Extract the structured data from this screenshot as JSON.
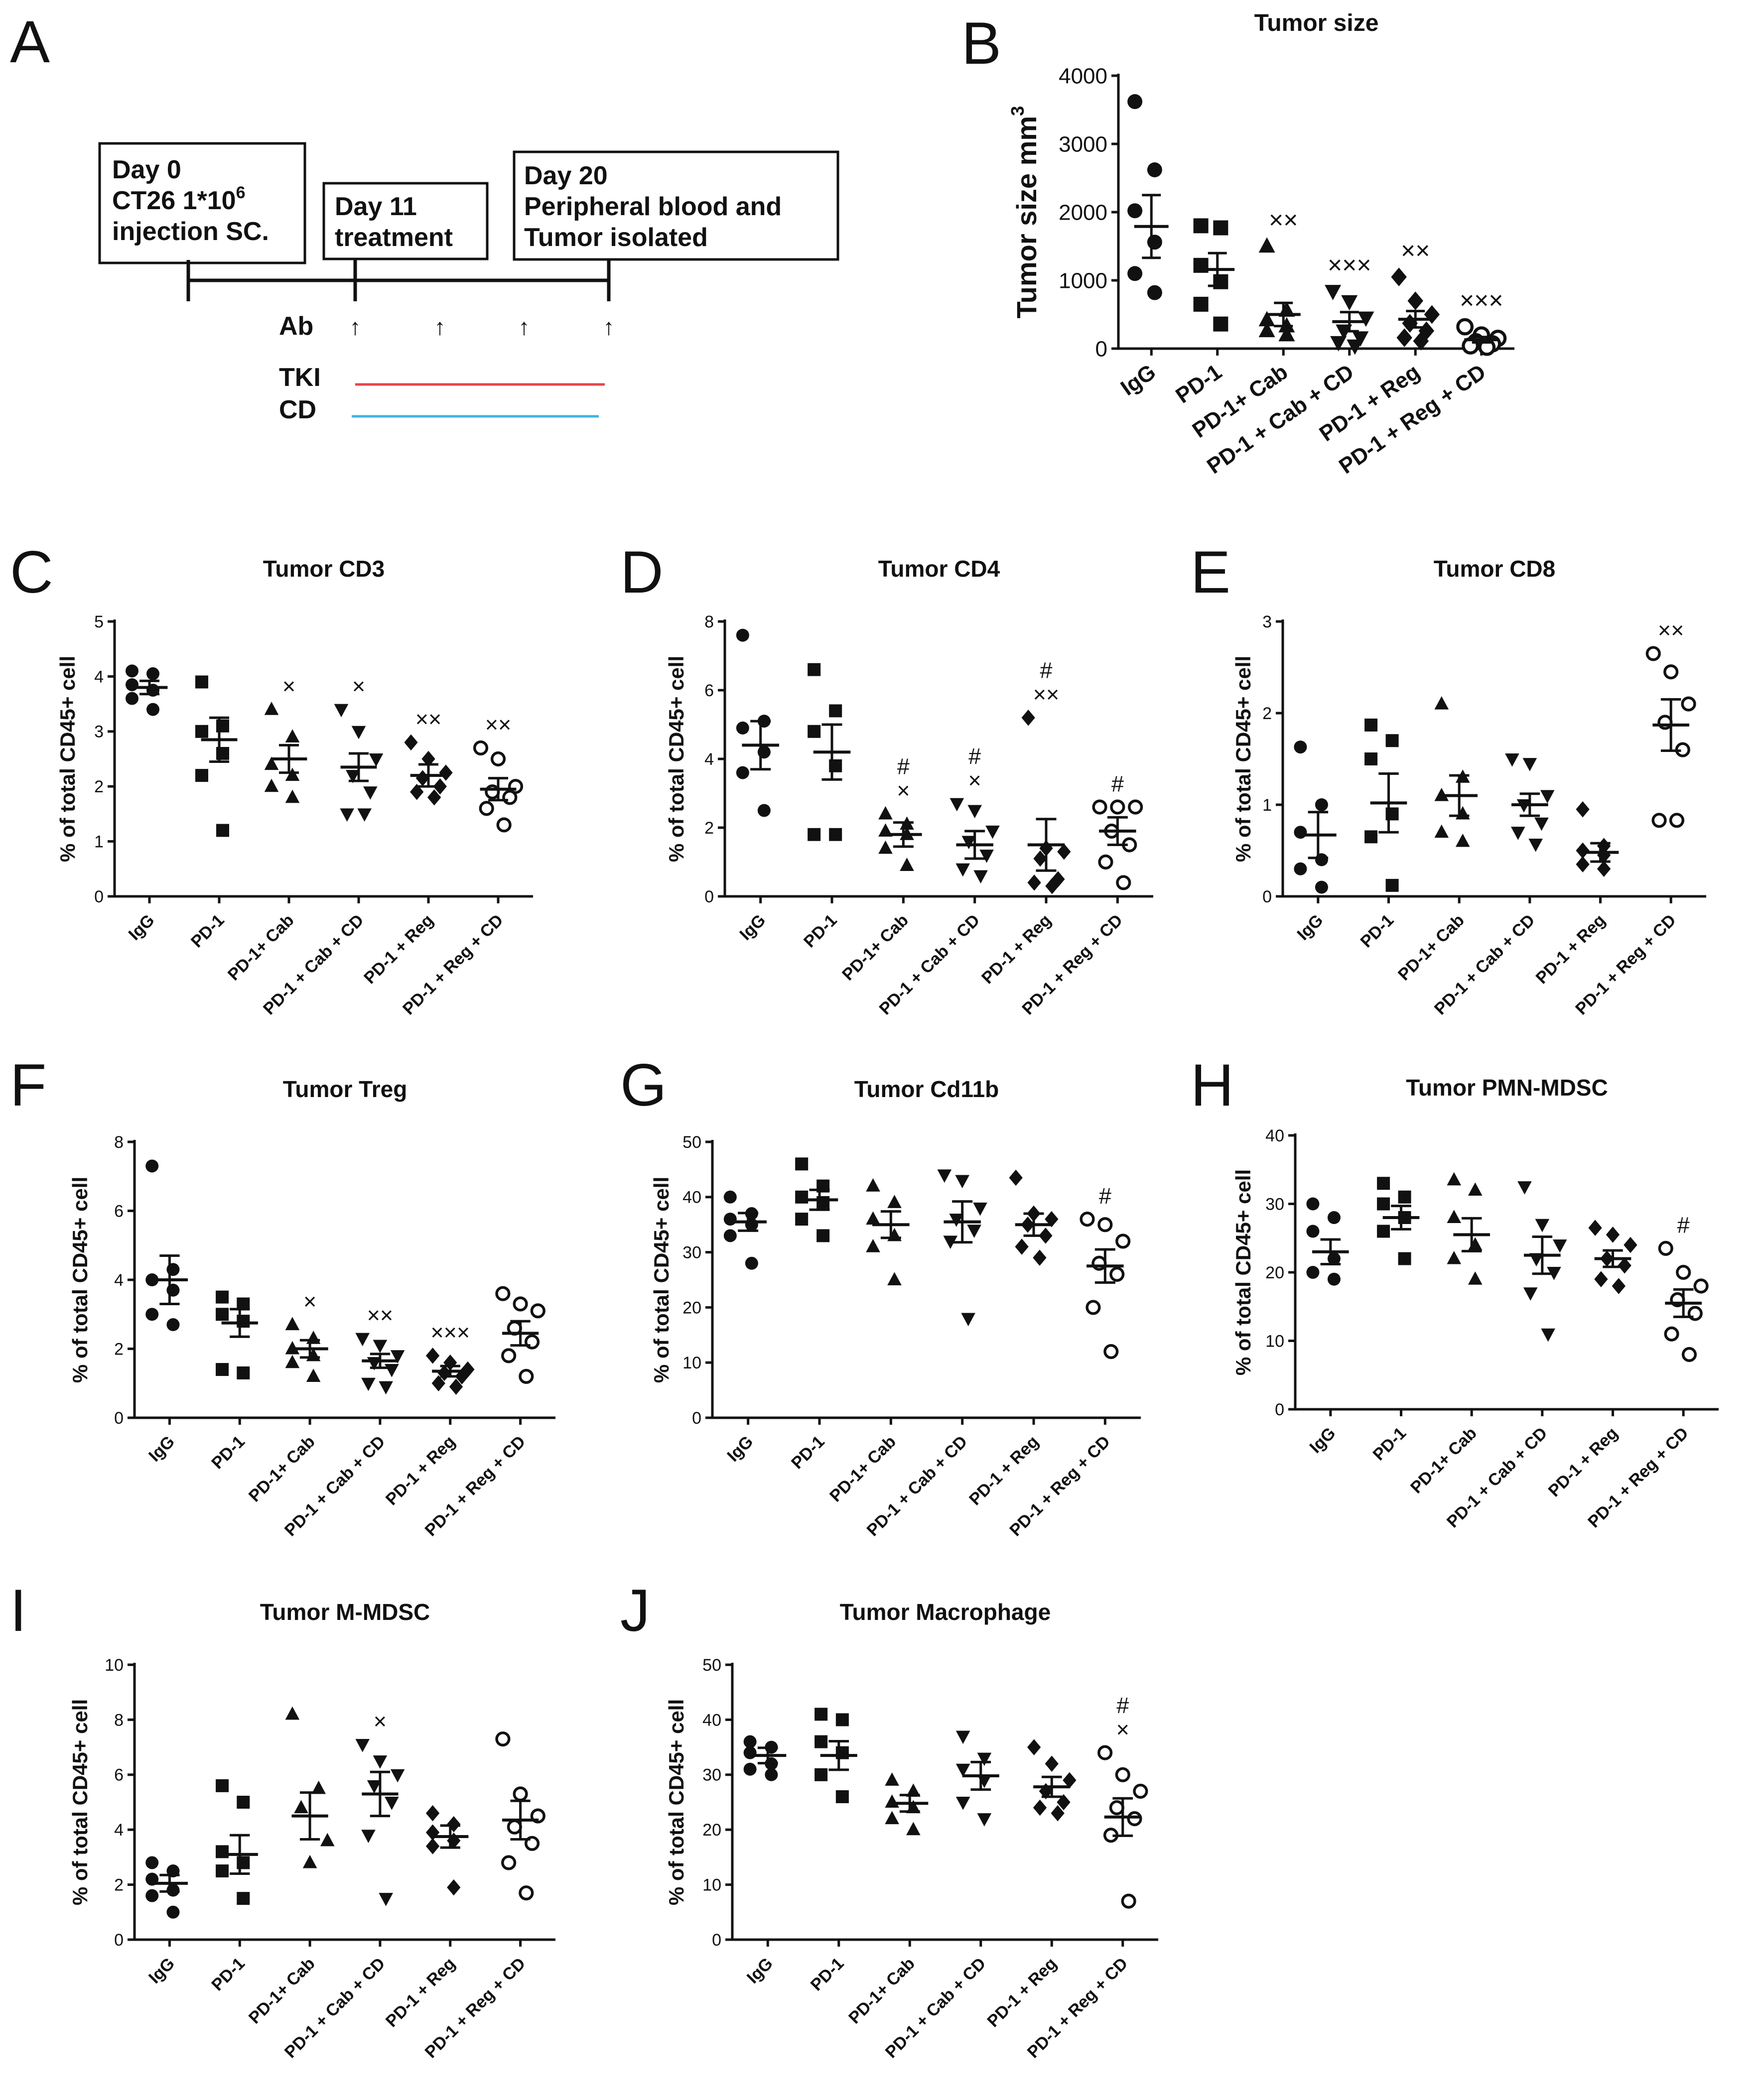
{
  "figure": {
    "panel_a": {
      "letter": "A",
      "box1": [
        "Day 0",
        "CT26 1*10",
        "injection SC."
      ],
      "box1_sup": "6",
      "box2": [
        "Day 11",
        "treatment"
      ],
      "box3": [
        "Day 20",
        "Peripheral blood and",
        "Tumor isolated"
      ],
      "ab_label": "Ab",
      "arrow_glyph": "↑",
      "tki_label": "TKI",
      "cd_label": "CD",
      "tki_color": "#e64646",
      "cd_color": "#3fb4e6"
    }
  },
  "chart_data": [
    {
      "id": "B",
      "type": "scatter",
      "title": "Tumor size",
      "ylabel": "Tumor size mm",
      "ylabel_sup": "3",
      "categories": [
        "IgG",
        "PD-1",
        "PD-1+ Cab",
        "PD-1 + Cab + CD",
        "PD-1 + Reg",
        "PD-1 + Reg + CD"
      ],
      "ylim": [
        0,
        4000
      ],
      "yticks": [
        0,
        1000,
        2000,
        3000,
        4000
      ],
      "points": [
        [
          3620,
          2620,
          2020,
          1560,
          1100,
          820
        ],
        [
          1800,
          1770,
          1220,
          980,
          650,
          360
        ],
        [
          1500,
          560,
          420,
          330,
          260,
          200
        ],
        [
          840,
          690,
          450,
          260,
          160,
          90,
          40
        ],
        [
          1050,
          700,
          500,
          370,
          260,
          160,
          110
        ],
        [
          320,
          200,
          150,
          100,
          70,
          40,
          20
        ]
      ],
      "mean": [
        1790,
        1160,
        500,
        395,
        430,
        130
      ],
      "sem": [
        460,
        240,
        170,
        140,
        120,
        40
      ],
      "annotations": [
        [],
        [],
        [
          "××"
        ],
        [
          "×××"
        ],
        [
          "××"
        ],
        [
          "×××"
        ]
      ]
    },
    {
      "id": "C",
      "type": "scatter",
      "title": "Tumor CD3",
      "ylabel": "% of total CD45+ cell",
      "categories": [
        "IgG",
        "PD-1",
        "PD-1+ Cab",
        "PD-1 + Cab + CD",
        "PD-1 + Reg",
        "PD-1 + Reg + CD"
      ],
      "ylim": [
        0,
        5
      ],
      "yticks": [
        0,
        1,
        2,
        3,
        4,
        5
      ],
      "points": [
        [
          4.1,
          4.05,
          3.85,
          3.75,
          3.6,
          3.4
        ],
        [
          3.9,
          3.1,
          3.0,
          2.6,
          2.2,
          1.2
        ],
        [
          3.4,
          2.9,
          2.4,
          2.2,
          2.0,
          1.8
        ],
        [
          3.4,
          3.0,
          2.5,
          2.2,
          1.9,
          1.5,
          1.5
        ],
        [
          2.8,
          2.5,
          2.25,
          2.15,
          2.0,
          1.9,
          1.8
        ],
        [
          2.7,
          2.5,
          2.0,
          1.9,
          1.8,
          1.6,
          1.3
        ]
      ],
      "mean": [
        3.8,
        2.85,
        2.5,
        2.35,
        2.2,
        1.95
      ],
      "sem": [
        0.12,
        0.4,
        0.25,
        0.25,
        0.2,
        0.2
      ],
      "annotations": [
        [],
        [],
        [
          "×"
        ],
        [
          "×"
        ],
        [
          "××"
        ],
        [
          "××"
        ]
      ]
    },
    {
      "id": "D",
      "type": "scatter",
      "title": "Tumor CD4",
      "ylabel": "% of total CD45+ cell",
      "categories": [
        "IgG",
        "PD-1",
        "PD-1+ Cab",
        "PD-1 + Cab + CD",
        "PD-1 + Reg",
        "PD-1 + Reg + CD"
      ],
      "ylim": [
        0,
        8
      ],
      "yticks": [
        0,
        2,
        4,
        6,
        8
      ],
      "points": [
        [
          7.6,
          5.1,
          4.9,
          4.2,
          3.6,
          2.5
        ],
        [
          6.6,
          5.4,
          4.8,
          3.8,
          1.8,
          1.8
        ],
        [
          2.4,
          2.1,
          1.9,
          1.8,
          1.4,
          0.9
        ],
        [
          2.7,
          2.5,
          1.9,
          1.6,
          1.2,
          0.8,
          0.6
        ],
        [
          5.2,
          1.4,
          1.3,
          1.1,
          0.5,
          0.4,
          0.3
        ],
        [
          2.6,
          2.6,
          2.6,
          1.9,
          1.5,
          1.0,
          0.4
        ]
      ],
      "mean": [
        4.4,
        4.2,
        1.8,
        1.5,
        1.5,
        1.9
      ],
      "sem": [
        0.7,
        0.8,
        0.35,
        0.4,
        0.75,
        0.4
      ],
      "annotations": [
        [],
        [],
        [
          "#",
          "×"
        ],
        [
          "#",
          "×"
        ],
        [
          "#",
          "××"
        ],
        [
          "#"
        ]
      ]
    },
    {
      "id": "E",
      "type": "scatter",
      "title": "Tumor CD8",
      "ylabel": "% of total CD45+ cell",
      "categories": [
        "IgG",
        "PD-1",
        "PD-1+ Cab",
        "PD-1 + Cab + CD",
        "PD-1 + Reg",
        "PD-1 + Reg + CD"
      ],
      "ylim": [
        0,
        3
      ],
      "yticks": [
        0,
        1,
        2,
        3
      ],
      "points": [
        [
          1.63,
          1.0,
          0.7,
          0.4,
          0.3,
          0.1
        ],
        [
          1.87,
          1.7,
          1.5,
          0.9,
          0.65,
          0.12
        ],
        [
          2.1,
          1.3,
          1.1,
          0.9,
          0.7,
          0.6
        ],
        [
          1.5,
          1.45,
          1.1,
          1.0,
          0.8,
          0.7,
          0.57
        ],
        [
          0.95,
          0.55,
          0.5,
          0.45,
          0.35,
          0.3
        ],
        [
          2.65,
          2.45,
          2.1,
          1.9,
          1.6,
          0.83,
          0.83
        ]
      ],
      "mean": [
        0.67,
        1.02,
        1.1,
        1.0,
        0.48,
        1.87
      ],
      "sem": [
        0.25,
        0.32,
        0.22,
        0.12,
        0.1,
        0.28
      ],
      "annotations": [
        [],
        [],
        [],
        [],
        [],
        [
          "××"
        ]
      ]
    },
    {
      "id": "F",
      "type": "scatter",
      "title": "Tumor Treg",
      "ylabel": "% of total CD45+ cell",
      "categories": [
        "IgG",
        "PD-1",
        "PD-1+ Cab",
        "PD-1 + Cab + CD",
        "PD-1 + Reg",
        "PD-1 + Reg + CD"
      ],
      "ylim": [
        0,
        8
      ],
      "yticks": [
        0,
        2,
        4,
        6,
        8
      ],
      "points": [
        [
          7.3,
          4.3,
          4.0,
          3.7,
          3.0,
          2.7
        ],
        [
          3.5,
          3.3,
          3.0,
          2.8,
          1.4,
          1.3
        ],
        [
          2.7,
          2.3,
          2.0,
          1.8,
          1.6,
          1.2
        ],
        [
          2.3,
          2.1,
          1.8,
          1.6,
          1.4,
          1.0,
          0.9
        ],
        [
          1.8,
          1.6,
          1.4,
          1.3,
          1.2,
          1.0,
          0.9
        ],
        [
          3.6,
          3.3,
          3.1,
          2.6,
          2.2,
          1.8,
          1.2
        ]
      ],
      "mean": [
        4.0,
        2.75,
        2.0,
        1.65,
        1.35,
        2.45
      ],
      "sem": [
        0.7,
        0.4,
        0.25,
        0.2,
        0.15,
        0.35
      ],
      "annotations": [
        [],
        [],
        [
          "×"
        ],
        [
          "××"
        ],
        [
          "×××"
        ],
        []
      ]
    },
    {
      "id": "G",
      "type": "scatter",
      "title": "Tumor Cd11b",
      "ylabel": "% of total CD45+ cell",
      "categories": [
        "IgG",
        "PD-1",
        "PD-1+ Cab",
        "PD-1 + Cab + CD",
        "PD-1 + Reg",
        "PD-1 + Reg + CD"
      ],
      "ylim": [
        0,
        50
      ],
      "yticks": [
        0,
        10,
        20,
        30,
        40,
        50
      ],
      "points": [
        [
          40,
          37,
          36,
          35,
          33,
          28
        ],
        [
          46,
          42,
          40,
          39,
          36,
          33
        ],
        [
          42,
          39,
          36,
          33,
          31,
          25
        ],
        [
          44,
          43,
          38,
          36,
          34,
          32,
          18
        ],
        [
          43.5,
          37,
          36,
          35,
          33,
          31,
          29
        ],
        [
          36,
          35,
          32,
          28,
          26,
          20,
          12
        ]
      ],
      "mean": [
        35.5,
        39.5,
        35.0,
        35.5,
        35.0,
        27.5
      ],
      "sem": [
        1.6,
        1.8,
        2.4,
        3.7,
        2.0,
        3.0
      ],
      "annotations": [
        [],
        [],
        [],
        [],
        [],
        [
          "#"
        ]
      ]
    },
    {
      "id": "H",
      "type": "scatter",
      "title": "Tumor PMN-MDSC",
      "ylabel": "% of total CD45+ cell",
      "categories": [
        "IgG",
        "PD-1",
        "PD-1+ Cab",
        "PD-1 + Cab + CD",
        "PD-1 + Reg",
        "PD-1 + Reg + CD"
      ],
      "ylim": [
        0,
        40
      ],
      "yticks": [
        0,
        10,
        20,
        30,
        40
      ],
      "points": [
        [
          30,
          28,
          26,
          22,
          20,
          19
        ],
        [
          33,
          31,
          30,
          28,
          26,
          22
        ],
        [
          33.5,
          32,
          28,
          24,
          22,
          19
        ],
        [
          32.5,
          27,
          24,
          22,
          20,
          17,
          11
        ],
        [
          26.5,
          25.5,
          24,
          22,
          21,
          19,
          18
        ],
        [
          23.5,
          20,
          18,
          16,
          14,
          11,
          8
        ]
      ],
      "mean": [
        23.0,
        28.0,
        25.5,
        22.5,
        22.0,
        15.5
      ],
      "sem": [
        1.8,
        1.7,
        2.4,
        2.7,
        1.2,
        2.0
      ],
      "annotations": [
        [],
        [],
        [],
        [],
        [],
        [
          "#"
        ]
      ]
    },
    {
      "id": "I",
      "type": "scatter",
      "title": "Tumor M-MDSC",
      "ylabel": "% of total CD45+ cell",
      "categories": [
        "IgG",
        "PD-1",
        "PD-1+ Cab",
        "PD-1 + Cab + CD",
        "PD-1 + Reg",
        "PD-1 + Reg + CD"
      ],
      "ylim": [
        0,
        10
      ],
      "yticks": [
        0,
        2,
        4,
        6,
        8,
        10
      ],
      "points": [
        [
          2.8,
          2.5,
          2.2,
          1.8,
          1.6,
          1.0
        ],
        [
          5.6,
          5.0,
          3.2,
          2.8,
          2.5,
          1.5
        ],
        [
          8.2,
          5.5,
          4.8,
          3.6,
          2.8
        ],
        [
          7.1,
          6.5,
          6.0,
          5.6,
          5.0,
          3.8,
          1.5
        ],
        [
          4.6,
          4.2,
          3.9,
          3.6,
          3.4,
          1.9
        ],
        [
          7.3,
          5.3,
          4.5,
          4.1,
          3.5,
          2.8,
          1.7
        ]
      ],
      "mean": [
        2.05,
        3.1,
        4.5,
        5.3,
        3.75,
        4.35
      ],
      "sem": [
        0.3,
        0.7,
        0.85,
        0.8,
        0.4,
        0.7
      ],
      "annotations": [
        [],
        [],
        [],
        [
          "×"
        ],
        [],
        []
      ]
    },
    {
      "id": "J",
      "type": "scatter",
      "title": "Tumor Macrophage",
      "ylabel": "% of total CD45+ cell",
      "categories": [
        "IgG",
        "PD-1",
        "PD-1+ Cab",
        "PD-1 + Cab + CD",
        "PD-1 + Reg",
        "PD-1 + Reg + CD"
      ],
      "ylim": [
        0,
        50
      ],
      "yticks": [
        0,
        10,
        20,
        30,
        40,
        50
      ],
      "points": [
        [
          36,
          35,
          34,
          32,
          31,
          30
        ],
        [
          41,
          40,
          36,
          34,
          30,
          26
        ],
        [
          29,
          27,
          25,
          24,
          22,
          20
        ],
        [
          37,
          33,
          31,
          29,
          25,
          22
        ],
        [
          35,
          32,
          29,
          27,
          25,
          24,
          23
        ],
        [
          34,
          30,
          27,
          24,
          22,
          19,
          7
        ]
      ],
      "mean": [
        33.5,
        33.5,
        24.8,
        29.8,
        27.8,
        22.3
      ],
      "sem": [
        1.4,
        2.6,
        1.5,
        2.5,
        1.8,
        3.4
      ],
      "annotations": [
        [],
        [],
        [],
        [],
        [],
        [
          "#",
          "×"
        ]
      ]
    }
  ]
}
